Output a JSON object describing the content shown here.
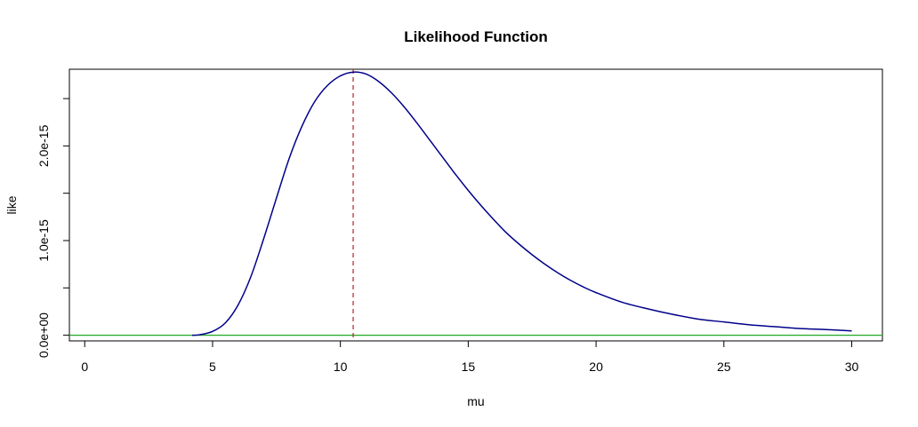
{
  "chart_data": {
    "type": "line",
    "title": "Likelihood Function",
    "xlabel": "mu",
    "ylabel": "like",
    "xlim": [
      -0.6,
      31.2
    ],
    "ylim": [
      -6e-17,
      2.81e-15
    ],
    "x_ticks": [
      0,
      5,
      10,
      15,
      20,
      25,
      30
    ],
    "x_tick_labels": [
      "0",
      "5",
      "10",
      "15",
      "20",
      "25",
      "30"
    ],
    "y_ticks": [
      0,
      5e-16,
      1e-15,
      1.5e-15,
      2e-15,
      2.5e-15
    ],
    "y_tick_labels": [
      "0.0e+00",
      "",
      "1.0e-15",
      "",
      "2.0e-15",
      ""
    ],
    "grid": false,
    "series": [
      {
        "color": "#00008B",
        "x": [
          4.2,
          4.5,
          5.0,
          5.5,
          6.0,
          6.5,
          7.0,
          7.5,
          8.0,
          8.5,
          9.0,
          9.5,
          10.0,
          10.5,
          11.0,
          11.5,
          12.0,
          12.5,
          13.0,
          13.5,
          14.0,
          14.5,
          15.0,
          15.5,
          16.0,
          16.5,
          17.0,
          17.5,
          18.0,
          18.5,
          19.0,
          19.5,
          20.0,
          21.0,
          22.0,
          23.0,
          24.0,
          25.0,
          26.0,
          27.0,
          28.0,
          29.0,
          30.0
        ],
        "y": [
          0.0,
          5e-18,
          4e-17,
          1.3e-16,
          3.2e-16,
          6.2e-16,
          1.02e-15,
          1.45e-15,
          1.87e-15,
          2.21e-15,
          2.47e-15,
          2.64e-15,
          2.74e-15,
          2.78e-15,
          2.76e-15,
          2.68e-15,
          2.56e-15,
          2.41e-15,
          2.24e-15,
          2.06e-15,
          1.88e-15,
          1.7e-15,
          1.53e-15,
          1.37e-15,
          1.22e-15,
          1.08e-15,
          9.6e-16,
          8.5e-16,
          7.5e-16,
          6.6e-16,
          5.8e-16,
          5.1e-16,
          4.5e-16,
          3.5e-16,
          2.8e-16,
          2.2e-16,
          1.7e-16,
          1.4e-16,
          1.1e-16,
          9e-17,
          7e-17,
          6e-17,
          4.5e-17
        ]
      }
    ],
    "vline": {
      "x": 10.5,
      "color": "#B22222",
      "style": "dashed"
    },
    "hline": {
      "y": 0,
      "color": "#22AA22"
    },
    "colors": {
      "axes": "#000000",
      "background": "#ffffff"
    }
  }
}
